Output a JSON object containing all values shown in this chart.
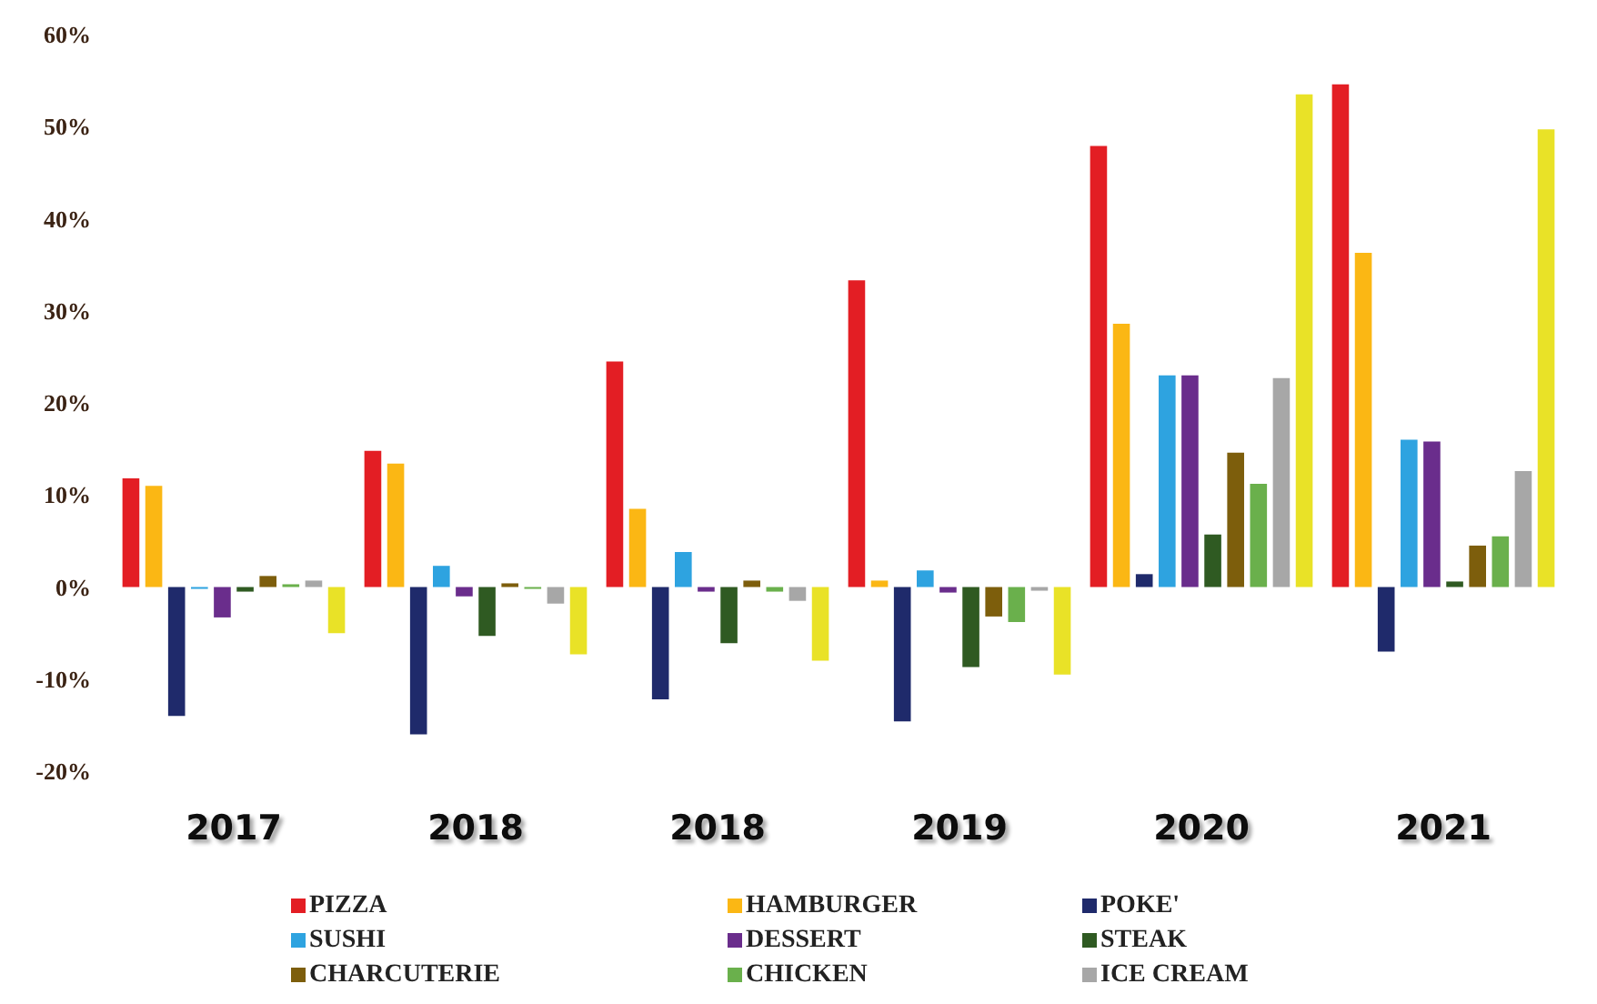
{
  "chart_data": {
    "type": "bar",
    "categories": [
      "2017",
      "2018",
      "2018",
      "2019",
      "2020",
      "2021"
    ],
    "ylim": [
      -20,
      60
    ],
    "yticks": [
      {
        "value": -20,
        "label": "-20%"
      },
      {
        "value": -10,
        "label": "-10%"
      },
      {
        "value": 0,
        "label": "0%"
      },
      {
        "value": 10,
        "label": "10%"
      },
      {
        "value": 20,
        "label": "20%"
      },
      {
        "value": 30,
        "label": "30%"
      },
      {
        "value": 40,
        "label": "40%"
      },
      {
        "value": 50,
        "label": "50%"
      },
      {
        "value": 60,
        "label": "60%"
      }
    ],
    "grid": false,
    "legend": "bottom",
    "series": [
      {
        "name": "PIZZA",
        "color": "#e31e24",
        "values": [
          11.8,
          14.8,
          24.5,
          33.3,
          47.9,
          54.6
        ]
      },
      {
        "name": "HAMBURGER",
        "color": "#fbb714",
        "values": [
          11,
          13.4,
          8.5,
          0.7,
          28.6,
          36.3
        ]
      },
      {
        "name": "POKE'",
        "color": "#1f2a6b",
        "values": [
          -14,
          -16,
          -12.2,
          -14.6,
          1.4,
          -7
        ]
      },
      {
        "name": "SUSHI",
        "color": "#2ea3e0",
        "values": [
          -0.2,
          2.3,
          3.8,
          1.8,
          23,
          16
        ]
      },
      {
        "name": "DESSERT",
        "color": "#6a2d8c",
        "values": [
          -3.3,
          -1,
          -0.5,
          -0.6,
          23,
          15.8
        ]
      },
      {
        "name": "STEAK",
        "color": "#2f5a22",
        "values": [
          -0.5,
          -5.3,
          -6.1,
          -8.7,
          5.7,
          0.6
        ]
      },
      {
        "name": "CHARCUTERIE",
        "color": "#7d5e0c",
        "values": [
          1.2,
          0.4,
          0.7,
          -3.2,
          14.6,
          4.5
        ]
      },
      {
        "name": "CHICKEN",
        "color": "#6ab04c",
        "values": [
          0.3,
          -0.2,
          -0.5,
          -3.8,
          11.2,
          5.5
        ]
      },
      {
        "name": "ICE CREAM",
        "color": "#a7a7a7",
        "values": [
          0.7,
          -1.8,
          -1.5,
          -0.4,
          22.7,
          12.6
        ]
      },
      {
        "color": "#e9e227",
        "values": [
          -5,
          -7.3,
          -8,
          -9.5,
          53.5,
          49.7
        ]
      }
    ]
  }
}
